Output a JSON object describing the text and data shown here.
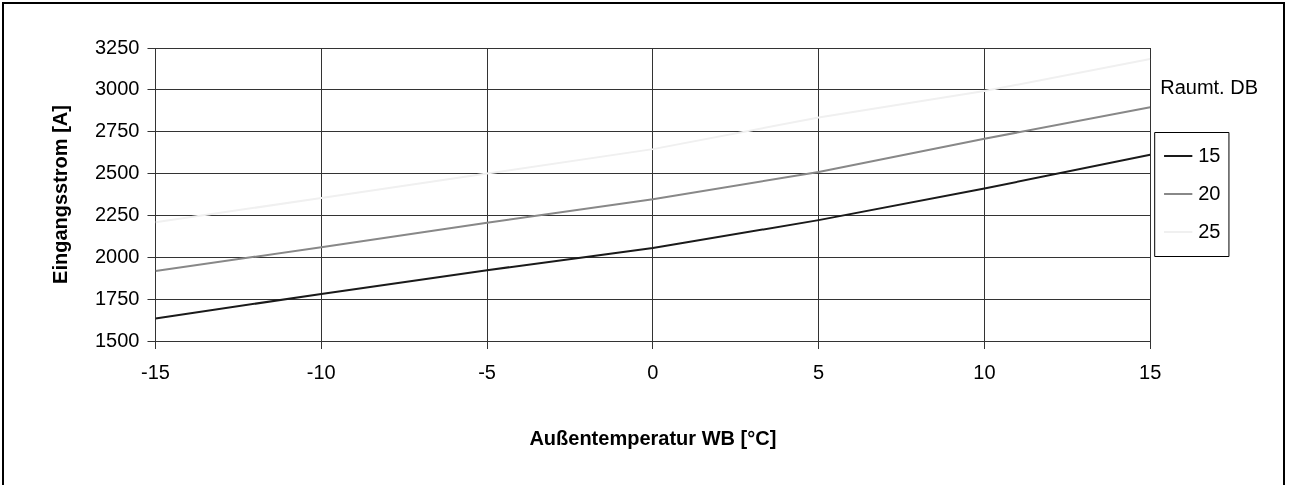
{
  "chart_data": {
    "type": "line",
    "xlabel": "Außentemperatur WB [°C]",
    "ylabel": "Eingangsstrom [A]",
    "legend_title": "Raumt. DB",
    "legend": "right",
    "grid": true,
    "marker": "none",
    "line_style": "solid",
    "x": [
      -15,
      -10,
      -5,
      0,
      5,
      10,
      15
    ],
    "xlim": [
      -15,
      15
    ],
    "xticks": [
      -15,
      -10,
      -5,
      0,
      5,
      10,
      15
    ],
    "ylim": [
      1500,
      3250
    ],
    "yticks": [
      1500,
      1750,
      2000,
      2250,
      2500,
      2750,
      3000,
      3250
    ],
    "series": [
      {
        "name": "15",
        "color": "#1a1a1a",
        "values": [
          1635,
          1781,
          1923,
          2055,
          2222,
          2411,
          2612
        ]
      },
      {
        "name": "20",
        "color": "#888888",
        "values": [
          1918,
          2060,
          2206,
          2346,
          2510,
          2708,
          2896
        ]
      },
      {
        "name": "25",
        "color": "#f0f0f0",
        "values": [
          2209,
          2354,
          2500,
          2646,
          2835,
          2993,
          3184
        ]
      }
    ]
  }
}
